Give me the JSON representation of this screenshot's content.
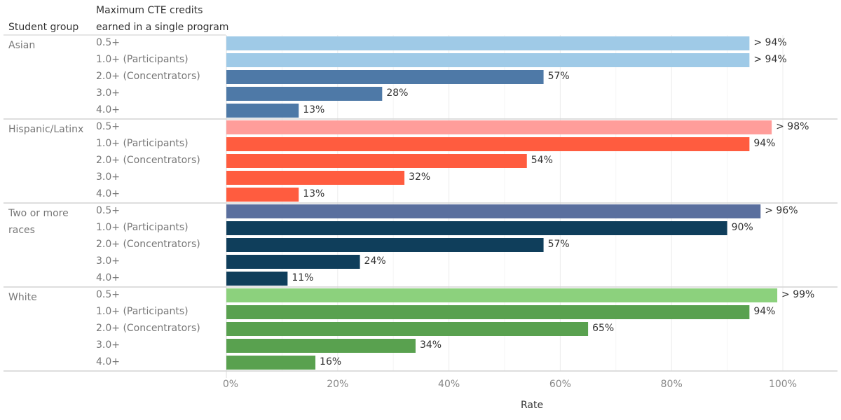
{
  "chart_data": {
    "type": "bar",
    "orientation": "horizontal",
    "xlabel": "Rate",
    "row_headers": [
      "Student group",
      "Maximum CTE credits earned in a single program"
    ],
    "xlim": [
      0,
      100
    ],
    "xticks": [
      "0%",
      "20%",
      "40%",
      "60%",
      "80%",
      "100%"
    ],
    "grid": true,
    "categories": [
      "0.5+",
      "1.0+ (Participants)",
      "2.0+ (Concentrators)",
      "3.0+",
      "4.0+"
    ],
    "groups": [
      {
        "name": "Asian",
        "values": [
          94,
          94,
          57,
          28,
          13
        ],
        "labels": [
          "> 94%",
          "> 94%",
          "57%",
          "28%",
          "13%"
        ],
        "colors": [
          "#9fcae7",
          "#9fcae7",
          "#4e79a7",
          "#4e79a7",
          "#4e79a7"
        ]
      },
      {
        "name": "Hispanic/Latinx",
        "values": [
          98,
          94,
          54,
          32,
          13
        ],
        "labels": [
          "> 98%",
          "94%",
          "54%",
          "32%",
          "13%"
        ],
        "colors": [
          "#ff9d9a",
          "#ff5c3f",
          "#ff5c3f",
          "#ff5c3f",
          "#ff5c3f"
        ]
      },
      {
        "name": "Two or more races",
        "values": [
          96,
          90,
          57,
          24,
          11
        ],
        "labels": [
          "> 96%",
          "90%",
          "57%",
          "24%",
          "11%"
        ],
        "colors": [
          "#5a6f9e",
          "#0f3e5b",
          "#0f3e5b",
          "#0f3e5b",
          "#0f3e5b"
        ]
      },
      {
        "name": "White",
        "values": [
          99,
          94,
          65,
          34,
          16
        ],
        "labels": [
          "> 99%",
          "94%",
          "65%",
          "34%",
          "16%"
        ],
        "colors": [
          "#8cd17d",
          "#59a14f",
          "#59a14f",
          "#59a14f",
          "#59a14f"
        ]
      }
    ]
  }
}
